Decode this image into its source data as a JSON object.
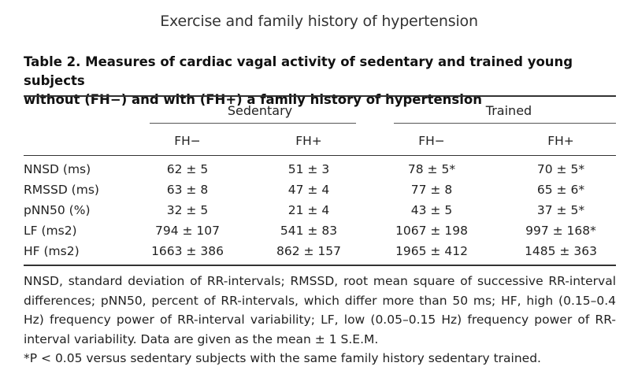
{
  "running_head": "Exercise and family history of hypertension",
  "caption": {
    "line1": "Table 2. Measures of cardiac vagal activity of sedentary and trained young subjects",
    "line2": "without (FH−) and with (FH+) a family history of hypertension"
  },
  "groups": [
    "Sedentary",
    "Trained"
  ],
  "subheads": [
    "FH−",
    "FH+",
    "FH−",
    "FH+"
  ],
  "rows": [
    {
      "label": "NNSD (ms)",
      "cells": [
        "62 ± 5",
        "51 ± 3",
        "78 ± 5*",
        "70 ± 5*"
      ]
    },
    {
      "label": "RMSSD (ms)",
      "cells": [
        "63 ± 8",
        "47 ± 4",
        "77 ± 8",
        "65 ± 6*"
      ]
    },
    {
      "label": "pNN50 (%)",
      "cells": [
        "32 ± 5",
        "21 ± 4",
        "43 ± 5",
        "37 ± 5*"
      ]
    },
    {
      "label": "LF (ms2)",
      "cells": [
        "794 ± 107",
        "541 ± 83",
        "1067 ± 198",
        "997 ± 168*"
      ]
    },
    {
      "label": "HF (ms2)",
      "cells": [
        "1663 ± 386",
        "862 ± 157",
        "1965 ± 412",
        "1485 ± 363"
      ]
    }
  ],
  "footnote": {
    "text1": "NNSD, standard deviation of RR-intervals; RMSSD, root mean square of successive RR-interval differences; pNN50, percent of RR-intervals, which differ more than 50 ms; HF, high (0.15–0.4 Hz) frequency power of RR-interval variability; LF, low (0.05–0.15 Hz) frequency power of RR-interval variability. Data are given as the mean ± 1 S.E.M.",
    "text2": "*P < 0.05 versus sedentary subjects with the same family history sedentary trained."
  }
}
